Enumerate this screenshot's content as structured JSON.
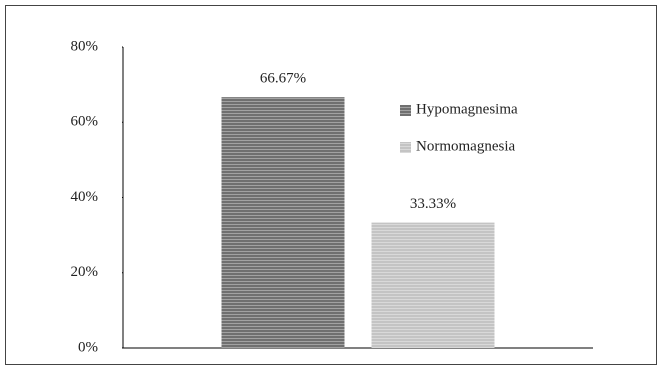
{
  "chart_data": {
    "type": "bar",
    "categories": [
      null
    ],
    "series": [
      {
        "name": "Hypomagnesima",
        "color": "#707070",
        "values": [
          66.67
        ],
        "value_labels": [
          "66.67%"
        ]
      },
      {
        "name": "Normomagnesia",
        "color": "#c4c4c4",
        "values": [
          33.33
        ],
        "value_labels": [
          "33.33%"
        ]
      }
    ],
    "ylim": [
      0,
      80
    ],
    "yticks": [
      {
        "value": 0,
        "label": "0%"
      },
      {
        "value": 20,
        "label": "20%"
      },
      {
        "value": 40,
        "label": "40%"
      },
      {
        "value": 60,
        "label": "60%"
      },
      {
        "value": 80,
        "label": "80%"
      }
    ],
    "grid": false,
    "legend": "upper right"
  }
}
